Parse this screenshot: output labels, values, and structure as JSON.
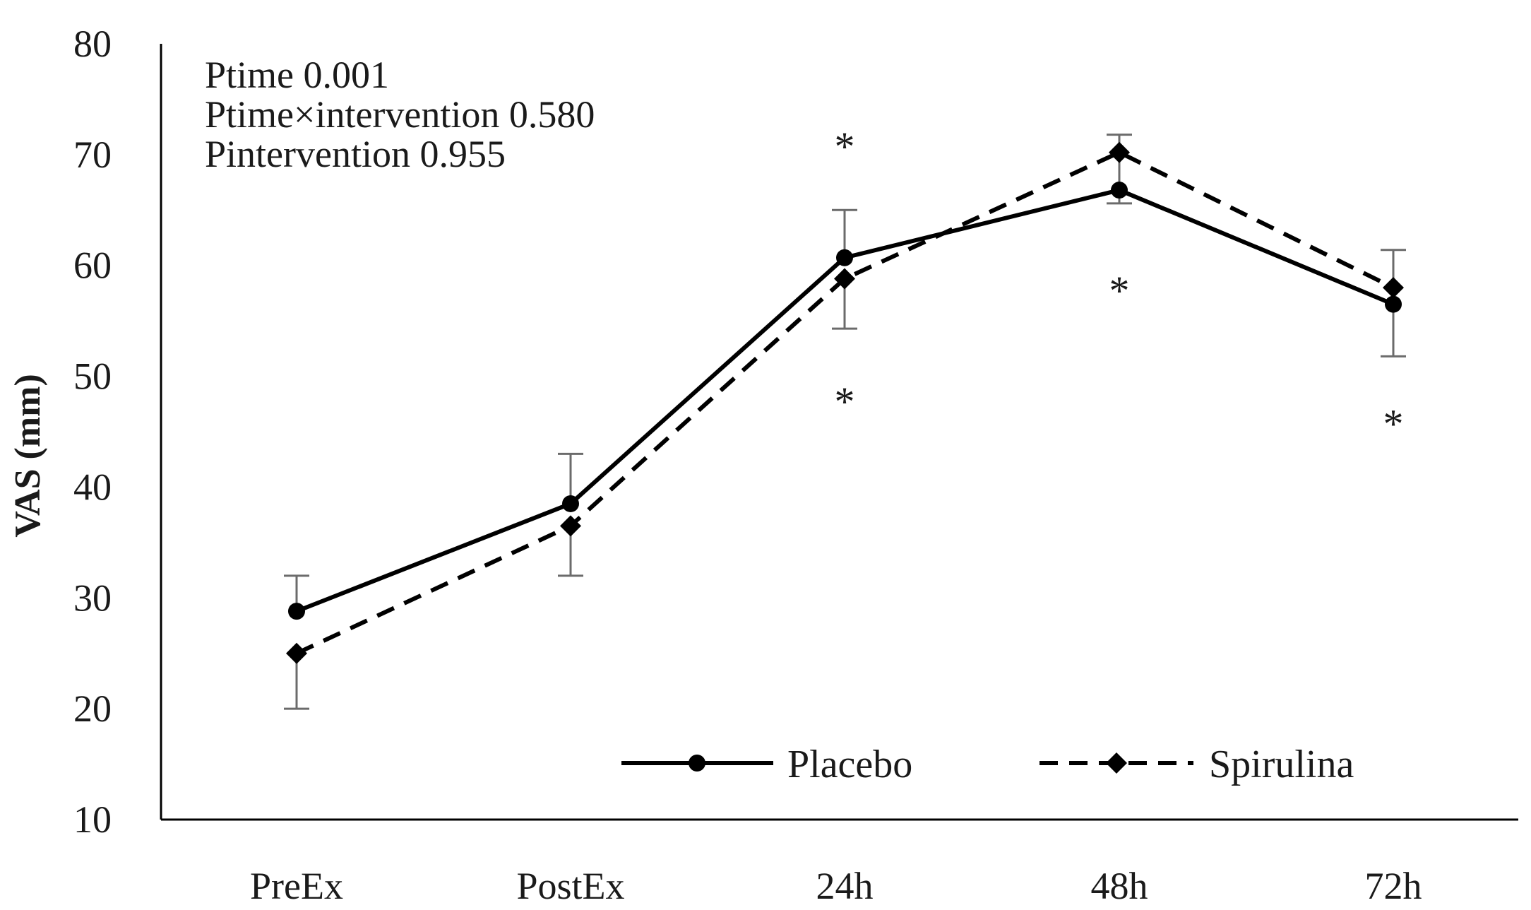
{
  "chart_data": {
    "type": "line",
    "title": "",
    "xlabel": "",
    "ylabel": "VAS (mm)",
    "ylim": [
      10,
      80
    ],
    "yticks": [
      10,
      20,
      30,
      40,
      50,
      60,
      70,
      80
    ],
    "grid": false,
    "categories": [
      "PreEx",
      "PostEx",
      "24h",
      "48h",
      "72h"
    ],
    "series": [
      {
        "name": "Placebo",
        "style": "solid",
        "marker": "circle",
        "color": "#000000",
        "values": [
          28.8,
          38.5,
          60.7,
          66.8,
          56.5
        ],
        "error_upper": [
          32.0,
          43.0,
          65.0,
          null,
          null
        ],
        "error_lower": [
          null,
          null,
          null,
          null,
          51.8
        ]
      },
      {
        "name": "Spirulina",
        "style": "dashed",
        "marker": "diamond",
        "color": "#000000",
        "values": [
          25.0,
          36.5,
          58.8,
          70.2,
          58.0
        ],
        "error_upper": [
          null,
          null,
          null,
          71.8,
          61.4
        ],
        "error_lower": [
          20.0,
          32.0,
          54.3,
          65.6,
          null
        ]
      }
    ],
    "significance_markers": [
      {
        "category": "24h",
        "value": 71,
        "label": "*"
      },
      {
        "category": "24h",
        "value": 48,
        "label": "*"
      },
      {
        "category": "48h",
        "value": 58,
        "label": "*"
      },
      {
        "category": "72h",
        "value": 46,
        "label": "*"
      }
    ],
    "annotations": [
      "Ptime 0.001",
      "Ptime×intervention 0.580",
      "Pintervention 0.955"
    ],
    "legend_placement": "bottom-right"
  }
}
